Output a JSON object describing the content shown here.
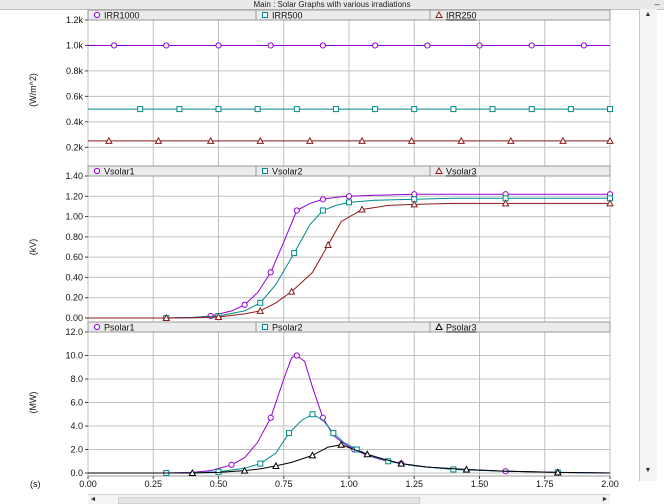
{
  "window": {
    "title": "Main : Solar Graphs  with various irradiations",
    "minimize_symbol": "–"
  },
  "scroll": {
    "up": "▲",
    "down": "▼",
    "left": "◄",
    "right": "►",
    "panel_arrow": "▸"
  },
  "xaxis": {
    "unit": "(s)"
  },
  "colors": {
    "purple": "#9400d3",
    "teal": "#008b8b",
    "maroon": "#8b1a1a",
    "black": "#000000",
    "grid": "#c0c0c0"
  },
  "chart_data": [
    {
      "type": "line",
      "ylabel": "(W/m^2)",
      "ylim": [
        0.1,
        1.2
      ],
      "yticks": [
        0.2,
        0.4,
        0.6,
        0.8,
        1.0,
        1.2
      ],
      "ytick_labels": [
        "0.2k",
        "0.4k",
        "0.6k",
        "0.8k",
        "1.0k",
        "1.2k"
      ],
      "xlim": [
        0,
        2.0
      ],
      "grid": true,
      "legend_placement": "top",
      "series": [
        {
          "name": "IRR1000",
          "marker": "circle",
          "color": "#9400d3",
          "x": [
            0,
            0.1,
            0.2,
            0.3,
            0.4,
            0.5,
            0.6,
            0.7,
            0.8,
            0.9,
            1.0,
            1.1,
            1.2,
            1.3,
            1.4,
            1.5,
            1.6,
            1.7,
            1.8,
            1.9,
            2.0
          ],
          "y": [
            1.0,
            1.0,
            1.0,
            1.0,
            1.0,
            1.0,
            1.0,
            1.0,
            1.0,
            1.0,
            1.0,
            1.0,
            1.0,
            1.0,
            1.0,
            1.0,
            1.0,
            1.0,
            1.0,
            1.0,
            1.0
          ]
        },
        {
          "name": "IRR500",
          "marker": "square",
          "color": "#008b8b",
          "x": [
            0,
            0.2,
            0.35,
            0.5,
            0.65,
            0.8,
            0.95,
            1.1,
            1.25,
            1.4,
            1.55,
            1.7,
            1.85,
            2.0
          ],
          "y": [
            0.5,
            0.5,
            0.5,
            0.5,
            0.5,
            0.5,
            0.5,
            0.5,
            0.5,
            0.5,
            0.5,
            0.5,
            0.5,
            0.5
          ]
        },
        {
          "name": "IRR250",
          "marker": "triangle",
          "color": "#8b1a1a",
          "underline": true,
          "x": [
            0,
            0.08,
            0.27,
            0.47,
            0.66,
            0.85,
            1.05,
            1.24,
            1.43,
            1.62,
            1.82,
            2.0
          ],
          "y": [
            0.25,
            0.25,
            0.25,
            0.25,
            0.25,
            0.25,
            0.25,
            0.25,
            0.25,
            0.25,
            0.25,
            0.25
          ]
        }
      ]
    },
    {
      "type": "line",
      "ylabel": "(kV)",
      "ylim": [
        0,
        1.4
      ],
      "yticks": [
        0,
        0.2,
        0.4,
        0.6,
        0.8,
        1.0,
        1.2,
        1.4
      ],
      "ytick_labels": [
        "0.00",
        "0.20",
        "0.40",
        "0.60",
        "0.80",
        "1.00",
        "1.20",
        "1.40"
      ],
      "xlim": [
        0,
        2.0
      ],
      "grid": true,
      "legend_placement": "top",
      "series": [
        {
          "name": "Vsolar1",
          "marker": "circle",
          "color": "#9400d3",
          "x": [
            0,
            0.3,
            0.4,
            0.47,
            0.55,
            0.6,
            0.65,
            0.7,
            0.75,
            0.8,
            0.85,
            0.9,
            0.95,
            1.0,
            1.1,
            1.25,
            1.4,
            1.6,
            1.8,
            2.0
          ],
          "y": [
            0,
            0,
            0.005,
            0.02,
            0.07,
            0.13,
            0.25,
            0.45,
            0.75,
            1.06,
            1.13,
            1.17,
            1.19,
            1.2,
            1.21,
            1.22,
            1.22,
            1.22,
            1.22,
            1.22
          ]
        },
        {
          "name": "Vsolar2",
          "marker": "square",
          "color": "#008b8b",
          "x": [
            0,
            0.3,
            0.4,
            0.5,
            0.6,
            0.66,
            0.72,
            0.79,
            0.85,
            0.9,
            0.95,
            1.0,
            1.1,
            1.25,
            1.4,
            1.6,
            1.8,
            2.0
          ],
          "y": [
            0,
            0,
            0.005,
            0.02,
            0.07,
            0.15,
            0.33,
            0.64,
            0.92,
            1.06,
            1.11,
            1.14,
            1.16,
            1.17,
            1.18,
            1.18,
            1.18,
            1.18
          ]
        },
        {
          "name": "Vsolar3",
          "marker": "triangle",
          "color": "#8b1a1a",
          "underline": true,
          "x": [
            0,
            0.3,
            0.4,
            0.5,
            0.6,
            0.66,
            0.72,
            0.78,
            0.86,
            0.92,
            0.97,
            1.05,
            1.15,
            1.25,
            1.4,
            1.6,
            1.8,
            2.0
          ],
          "y": [
            0,
            0,
            0.003,
            0.01,
            0.04,
            0.07,
            0.15,
            0.26,
            0.45,
            0.72,
            0.95,
            1.07,
            1.11,
            1.12,
            1.13,
            1.13,
            1.13,
            1.13
          ]
        }
      ]
    },
    {
      "type": "line",
      "ylabel": "(MW)",
      "ylim": [
        0,
        12.0
      ],
      "yticks": [
        0,
        2,
        4,
        6,
        8,
        10,
        12
      ],
      "ytick_labels": [
        "0.0",
        "2.0",
        "4.0",
        "6.0",
        "8.0",
        "10.0",
        "12.0"
      ],
      "xlim": [
        0,
        2.0
      ],
      "xticks": [
        0,
        0.25,
        0.5,
        0.75,
        1.0,
        1.25,
        1.5,
        1.75,
        2.0
      ],
      "xtick_labels": [
        "0.00",
        "0.25",
        "0.50",
        "0.75",
        "1.00",
        "1.25",
        "1.50",
        "1.75",
        "2.00"
      ],
      "grid": true,
      "legend_placement": "top",
      "series": [
        {
          "name": "Psolar1",
          "marker": "circle",
          "color": "#9400d3",
          "x": [
            0,
            0.3,
            0.4,
            0.47,
            0.55,
            0.6,
            0.65,
            0.7,
            0.75,
            0.78,
            0.8,
            0.83,
            0.86,
            0.9,
            0.94,
            0.98,
            1.02,
            1.07,
            1.13,
            1.2,
            1.3,
            1.45,
            1.6,
            1.8,
            2.0
          ],
          "y": [
            0,
            0,
            0.05,
            0.2,
            0.7,
            1.3,
            2.6,
            4.7,
            8.0,
            9.8,
            10.0,
            9.5,
            7.3,
            4.7,
            3.2,
            2.5,
            2.0,
            1.5,
            1.1,
            0.8,
            0.5,
            0.3,
            0.15,
            0.05,
            0.0
          ]
        },
        {
          "name": "Psolar2",
          "marker": "square",
          "color": "#008b8b",
          "x": [
            0,
            0.3,
            0.4,
            0.5,
            0.6,
            0.66,
            0.72,
            0.77,
            0.82,
            0.86,
            0.9,
            0.94,
            0.98,
            1.03,
            1.08,
            1.15,
            1.25,
            1.4,
            1.6,
            1.8,
            2.0
          ],
          "y": [
            0,
            0,
            0.02,
            0.1,
            0.4,
            0.8,
            1.7,
            3.4,
            4.5,
            5.0,
            4.5,
            3.4,
            2.6,
            2.0,
            1.5,
            1.0,
            0.6,
            0.3,
            0.15,
            0.05,
            0.0
          ]
        },
        {
          "name": "Psolar3",
          "marker": "triangle",
          "color": "#000000",
          "underline": true,
          "x": [
            0,
            0.4,
            0.5,
            0.6,
            0.66,
            0.72,
            0.78,
            0.86,
            0.92,
            0.97,
            1.02,
            1.07,
            1.13,
            1.2,
            1.3,
            1.45,
            1.6,
            1.8,
            2.0
          ],
          "y": [
            0,
            0,
            0.05,
            0.2,
            0.35,
            0.6,
            0.9,
            1.5,
            2.2,
            2.4,
            2.0,
            1.6,
            1.2,
            0.8,
            0.5,
            0.3,
            0.15,
            0.05,
            0.0
          ]
        }
      ]
    }
  ]
}
